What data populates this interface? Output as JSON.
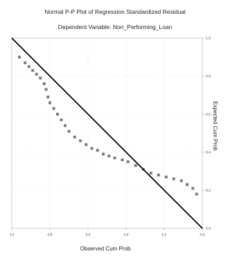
{
  "chart_data": {
    "type": "scatter",
    "title": "Normal P-P Plot of Regression Standardized Residual",
    "subtitle": "Dependent Variable: Non_Performing_Loan",
    "xlabel": "Observed Cum Prob",
    "ylabel": "Expected Cum Prob",
    "x_ticks": [
      "1.0",
      "0.8",
      "0.6",
      "0.4",
      "0.2",
      "0.0"
    ],
    "y_ticks": [
      "1.0",
      "0.8",
      "0.6",
      "0.4",
      "0.2",
      "0.0"
    ],
    "xlim": [
      0,
      1
    ],
    "ylim": [
      0,
      1
    ],
    "x_reversed": true,
    "ylabel_side": "right",
    "grid": true,
    "reference_line": {
      "from": [
        1,
        1
      ],
      "to": [
        0,
        0
      ]
    },
    "series": [
      {
        "points": [
          [
            0.96,
            0.9
          ],
          [
            0.93,
            0.87
          ],
          [
            0.91,
            0.85
          ],
          [
            0.89,
            0.83
          ],
          [
            0.87,
            0.81
          ],
          [
            0.85,
            0.79
          ],
          [
            0.83,
            0.76
          ],
          [
            0.82,
            0.73
          ],
          [
            0.81,
            0.69
          ],
          [
            0.8,
            0.66
          ],
          [
            0.78,
            0.63
          ],
          [
            0.76,
            0.6
          ],
          [
            0.74,
            0.57
          ],
          [
            0.72,
            0.54
          ],
          [
            0.7,
            0.51
          ],
          [
            0.67,
            0.48
          ],
          [
            0.64,
            0.46
          ],
          [
            0.61,
            0.44
          ],
          [
            0.58,
            0.42
          ],
          [
            0.55,
            0.41
          ],
          [
            0.52,
            0.39
          ],
          [
            0.49,
            0.38
          ],
          [
            0.46,
            0.37
          ],
          [
            0.42,
            0.36
          ],
          [
            0.39,
            0.35
          ],
          [
            0.35,
            0.33
          ],
          [
            0.31,
            0.31
          ],
          [
            0.27,
            0.29
          ],
          [
            0.23,
            0.28
          ],
          [
            0.19,
            0.27
          ],
          [
            0.15,
            0.26
          ],
          [
            0.11,
            0.25
          ],
          [
            0.08,
            0.23
          ],
          [
            0.05,
            0.21
          ],
          [
            0.03,
            0.18
          ]
        ]
      }
    ]
  }
}
